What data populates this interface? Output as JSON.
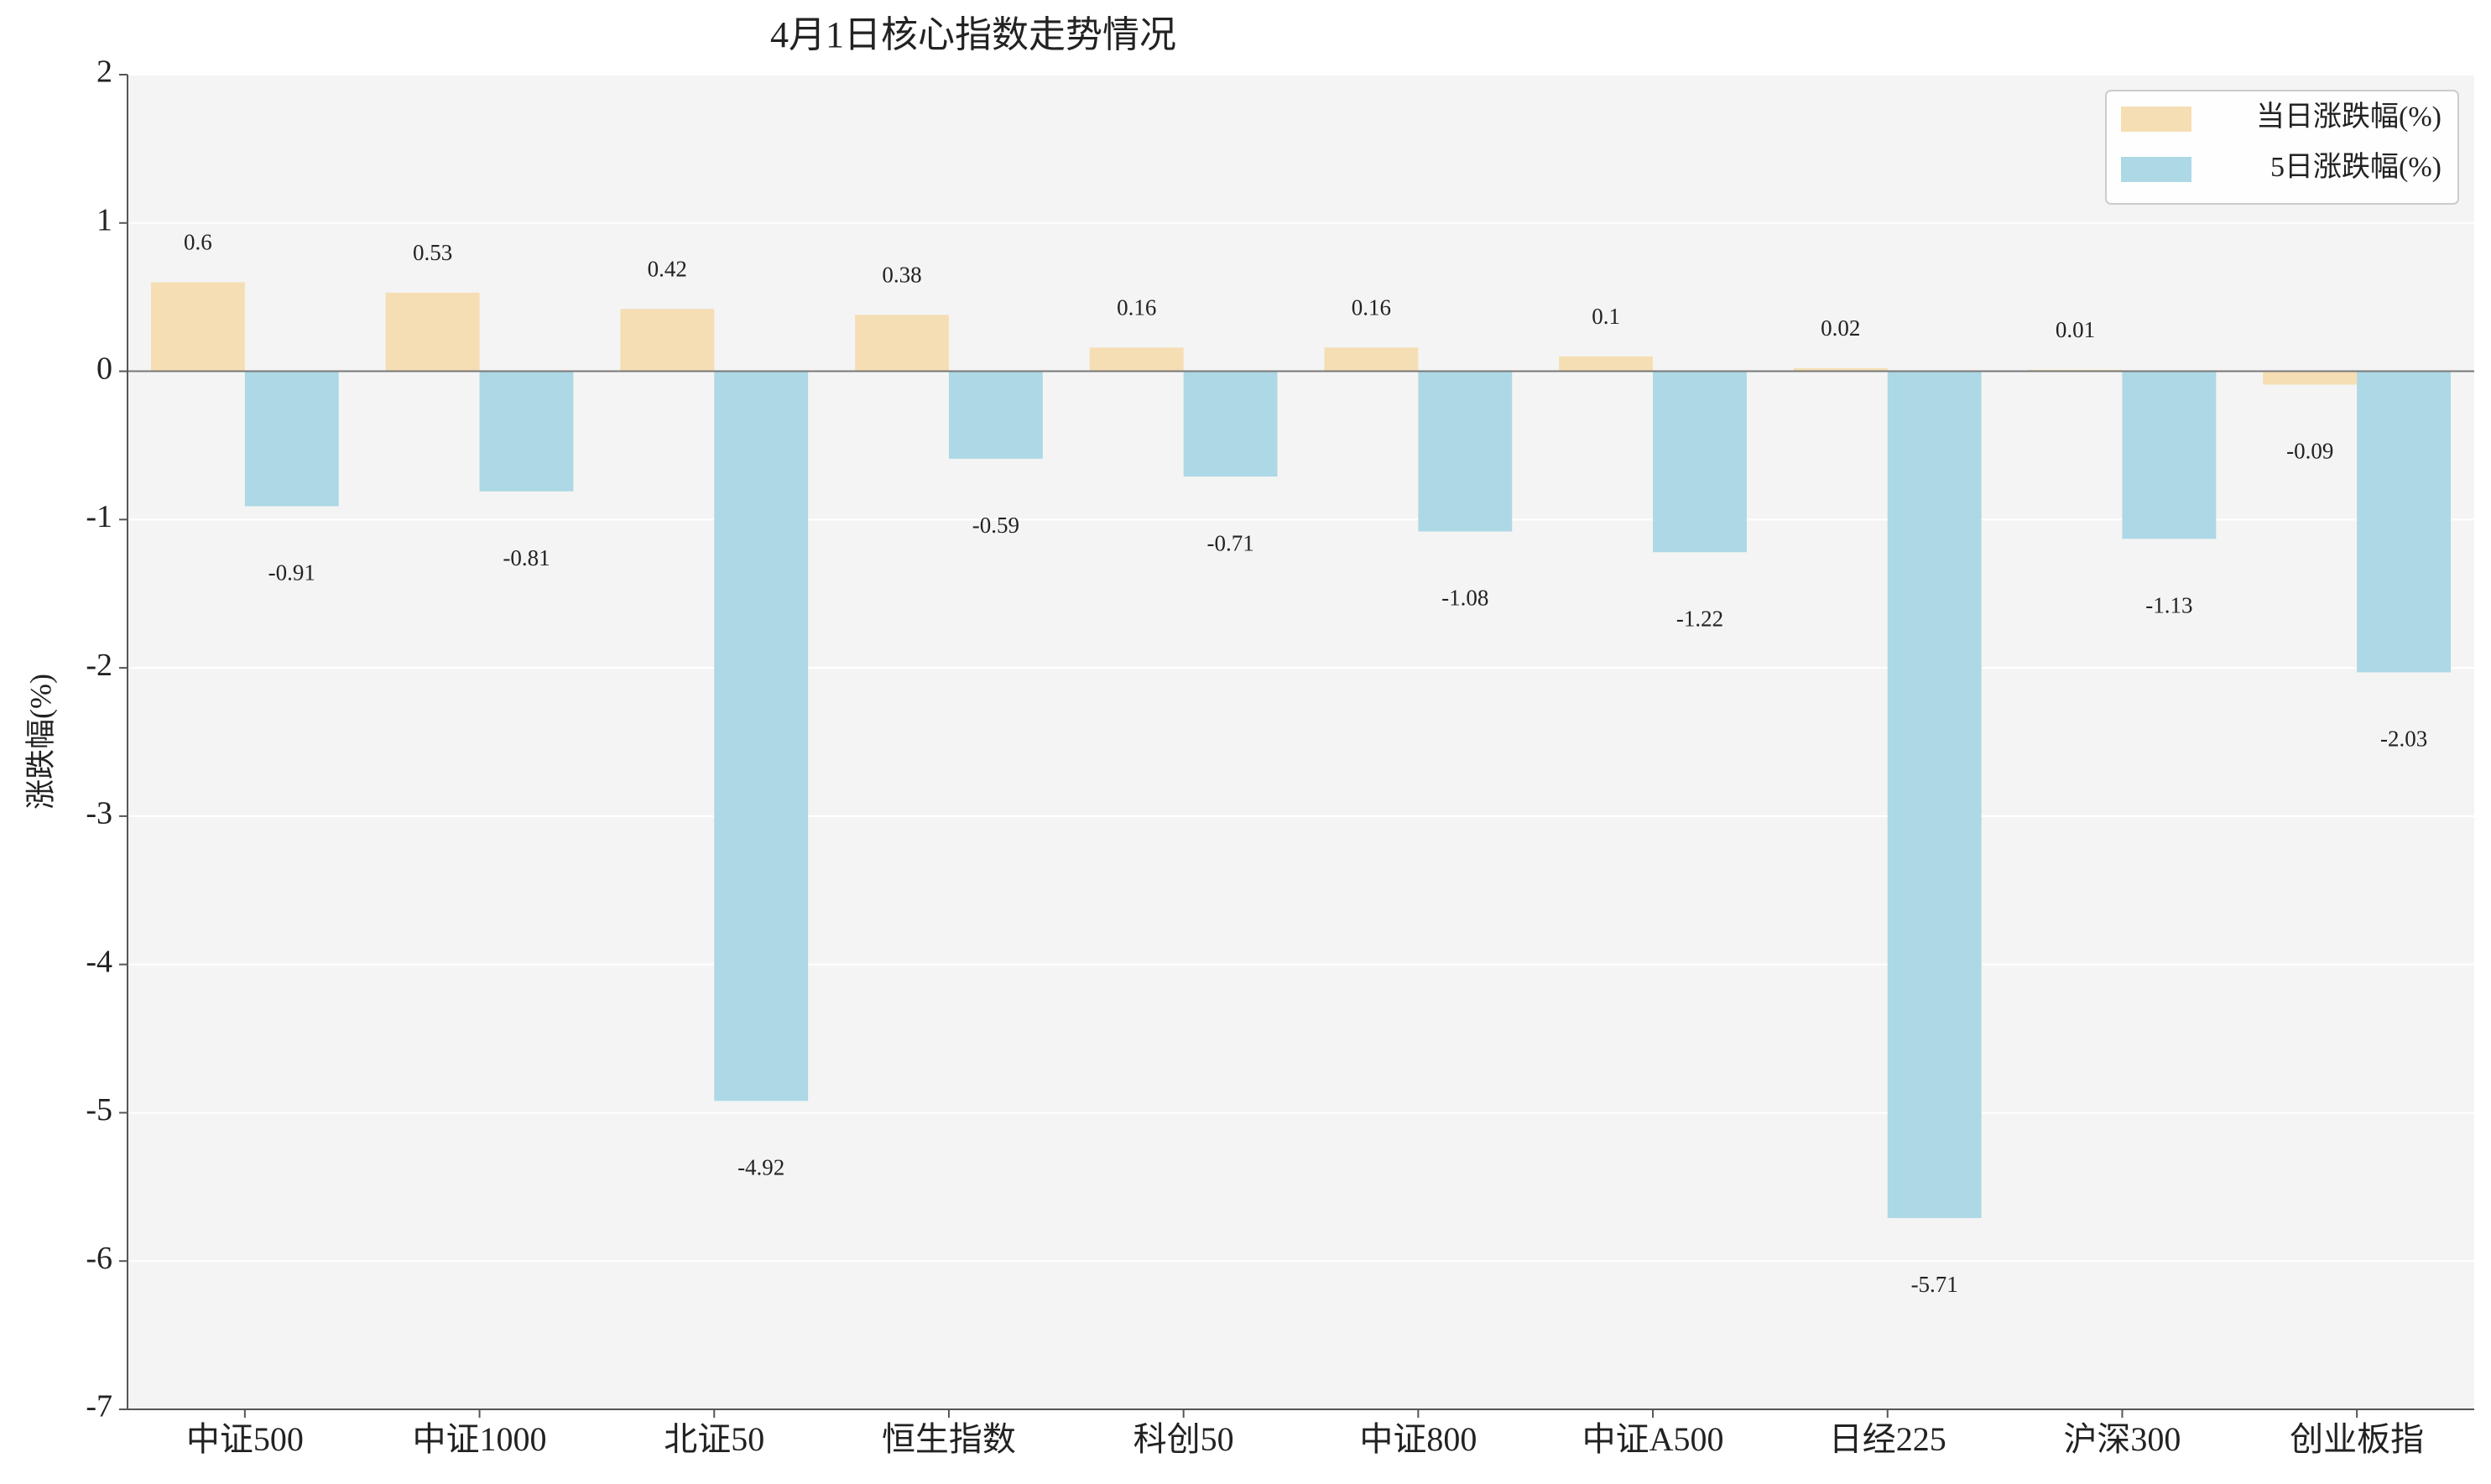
{
  "chart_data": {
    "type": "bar",
    "title": "4月1日核心指数走势情况",
    "y_label": "涨跌幅(%)",
    "categories": [
      "中证500",
      "中证1000",
      "北证50",
      "恒生指数",
      "科创50",
      "中证800",
      "中证A500",
      "日经225",
      "沪深300",
      "创业板指"
    ],
    "series": [
      {
        "name": "当日涨跌幅(%)",
        "color": "#f5deb3",
        "values": [
          0.6,
          0.53,
          0.42,
          0.38,
          0.16,
          0.16,
          0.1,
          0.02,
          0.01,
          -0.09
        ]
      },
      {
        "name": "5日涨跌幅(%)",
        "color": "#add8e6",
        "values": [
          -0.91,
          -0.81,
          -4.92,
          -0.59,
          -0.71,
          -1.08,
          -1.22,
          -5.71,
          -1.13,
          -2.03
        ]
      }
    ],
    "ylim": [
      -7,
      2
    ],
    "yticks": [
      -7,
      -6,
      -5,
      -4,
      -3,
      -2,
      -1,
      0,
      1,
      2
    ],
    "grid": true,
    "legend": "upper right"
  }
}
